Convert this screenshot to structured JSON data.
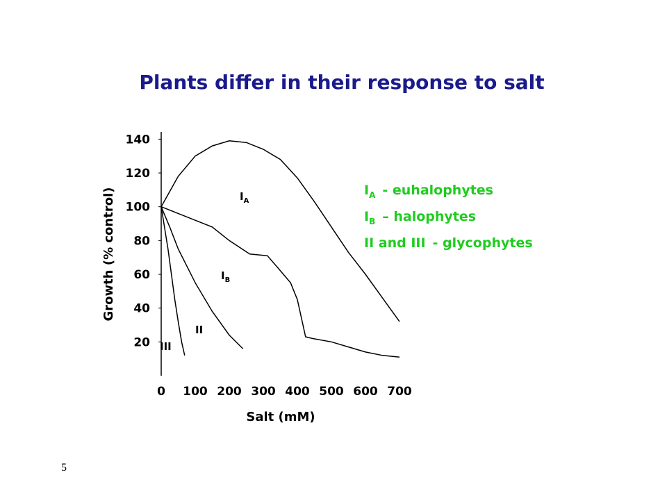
{
  "chart_data": {
    "type": "line",
    "title": "Plants differ in their response to salt",
    "x_label": "Salt (mM)",
    "y_label": "Growth (% control)",
    "xlim": [
      0,
      710
    ],
    "ylim": [
      0,
      145
    ],
    "xticks": [
      0,
      100,
      200,
      300,
      400,
      500,
      600,
      700
    ],
    "yticks": [
      20,
      40,
      60,
      80,
      100,
      120,
      140
    ],
    "series": [
      {
        "name": "I",
        "name_sub": "A",
        "color": "#000000",
        "x": [
          0,
          50,
          100,
          150,
          200,
          250,
          300,
          350,
          400,
          450,
          500,
          550,
          600,
          650,
          700
        ],
        "values": [
          100,
          118,
          130,
          136,
          139,
          138,
          134,
          128,
          117,
          103,
          88,
          73,
          60,
          46,
          32
        ]
      },
      {
        "name": "I",
        "name_sub": "B",
        "color": "#000000",
        "x": [
          0,
          50,
          100,
          150,
          200,
          260,
          312,
          342,
          380,
          400,
          424,
          445,
          500,
          550,
          600,
          650,
          700
        ],
        "values": [
          100,
          96,
          92,
          88,
          80,
          72,
          71,
          64,
          55,
          45,
          23,
          22,
          20,
          17,
          14,
          12,
          11
        ]
      },
      {
        "name": "II",
        "color": "#000000",
        "x": [
          0,
          25,
          50,
          100,
          150,
          200,
          240
        ],
        "values": [
          100,
          88,
          75,
          55,
          38,
          24,
          16
        ]
      },
      {
        "name": "III",
        "color": "#000000",
        "x": [
          0,
          20,
          40,
          50,
          60,
          69
        ],
        "values": [
          100,
          75,
          45,
          32,
          20,
          12
        ]
      }
    ],
    "notes": [
      {
        "label": "I",
        "sub": "A",
        "text": "- euhalophytes"
      },
      {
        "label": "I",
        "sub": "B",
        "text": "– halophytes"
      },
      {
        "label": "II and III",
        "text": "- glycophytes"
      }
    ],
    "notes_color": "#1fcc1f"
  },
  "page_number": "5"
}
